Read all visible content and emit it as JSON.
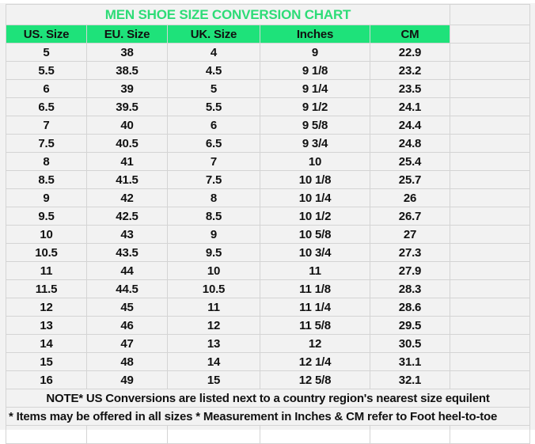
{
  "title": "MEN SHOE SIZE CONVERSION CHART",
  "colors": {
    "header_bg": "#1ee27a",
    "title_text": "#2ddc77",
    "sheet_bg": "#f2f2f2"
  },
  "headers": [
    "US. Size",
    "EU. Size",
    "UK. Size",
    "Inches",
    "CM"
  ],
  "rows": [
    [
      "5",
      "38",
      "4",
      "9",
      "22.9"
    ],
    [
      "5.5",
      "38.5",
      "4.5",
      "9 1/8",
      "23.2"
    ],
    [
      "6",
      "39",
      "5",
      "9 1/4",
      "23.5"
    ],
    [
      "6.5",
      "39.5",
      "5.5",
      "9 1/2",
      "24.1"
    ],
    [
      "7",
      "40",
      "6",
      "9 5/8",
      "24.4"
    ],
    [
      "7.5",
      "40.5",
      "6.5",
      "9 3/4",
      "24.8"
    ],
    [
      "8",
      "41",
      "7",
      "10",
      "25.4"
    ],
    [
      "8.5",
      "41.5",
      "7.5",
      "10 1/8",
      "25.7"
    ],
    [
      "9",
      "42",
      "8",
      "10 1/4",
      "26"
    ],
    [
      "9.5",
      "42.5",
      "8.5",
      "10 1/2",
      "26.7"
    ],
    [
      "10",
      "43",
      "9",
      "10 5/8",
      "27"
    ],
    [
      "10.5",
      "43.5",
      "9.5",
      "10 3/4",
      "27.3"
    ],
    [
      "11",
      "44",
      "10",
      "11",
      "27.9"
    ],
    [
      "11.5",
      "44.5",
      "10.5",
      "11 1/8",
      "28.3"
    ],
    [
      "12",
      "45",
      "11",
      "11 1/4",
      "28.6"
    ],
    [
      "13",
      "46",
      "12",
      "11 5/8",
      "29.5"
    ],
    [
      "14",
      "47",
      "13",
      "12",
      "30.5"
    ],
    [
      "15",
      "48",
      "14",
      "12 1/4",
      "31.1"
    ],
    [
      "16",
      "49",
      "15",
      "12 5/8",
      "32.1"
    ]
  ],
  "note1": "NOTE* US Conversions are listed next to a country region's nearest size equilent",
  "note2": "* Items may be offered in all sizes * Measurement in Inches & CM refer to Foot heel-to-toe"
}
